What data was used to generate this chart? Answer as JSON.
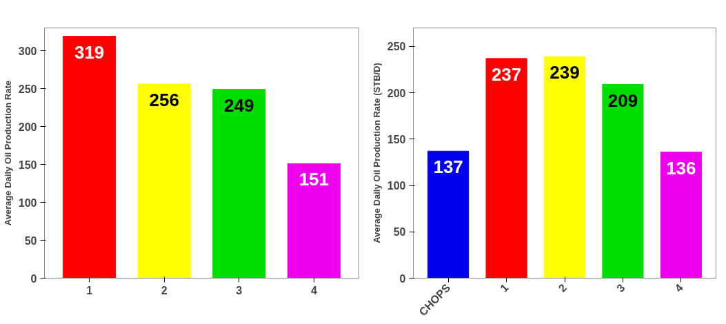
{
  "chart_data": [
    {
      "type": "bar",
      "ylabel": "Average Daily Oil Production Rate",
      "categories": [
        "1",
        "2",
        "3",
        "4"
      ],
      "values": [
        319,
        256,
        249,
        151
      ],
      "colors": [
        "#ff0000",
        "#ffff00",
        "#00dd00",
        "#ee00ee"
      ],
      "ylim": [
        0,
        330
      ],
      "yticks": [
        0,
        50,
        100,
        150,
        200,
        250,
        300
      ],
      "data_labels": true,
      "grid": false
    },
    {
      "type": "bar",
      "ylabel": "Average Daily Oil Production Rate (STB/D)",
      "categories": [
        "CHOPS",
        "1",
        "2",
        "3",
        "4"
      ],
      "values": [
        137,
        237,
        239,
        209,
        136
      ],
      "colors": [
        "#0000ee",
        "#ff0000",
        "#ffff00",
        "#00dd00",
        "#ee00ee"
      ],
      "ylim": [
        0,
        270
      ],
      "yticks": [
        0,
        50,
        100,
        150,
        200,
        250
      ],
      "data_labels": true,
      "grid": false
    }
  ]
}
